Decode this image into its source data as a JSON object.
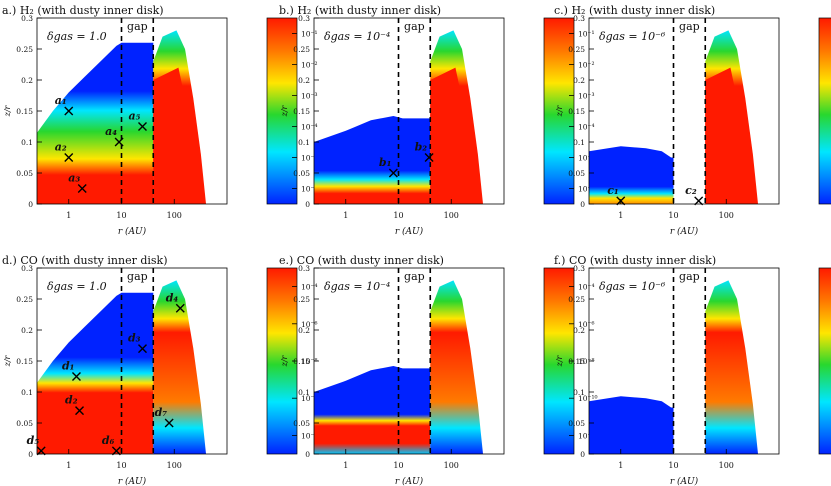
{
  "colors": {
    "red": "#ff1a00",
    "orange": "#ff8c00",
    "yellow": "#ffee00",
    "green": "#28d72e",
    "cyan": "#00e6ff",
    "blue": "#0022ff"
  },
  "chart_data": [
    {
      "type": "heatmap",
      "title": "a.) H₂ (with dusty inner disk)",
      "xlabel": "r (AU)",
      "ylabel": "z/r",
      "xscale": "log",
      "xlim": [
        0.25,
        1000
      ],
      "ylim": [
        0,
        0.3
      ],
      "xticks": [
        "1",
        "10",
        "100"
      ],
      "yticks": [
        "0",
        "0.05",
        "0.1",
        "0.15",
        "0.2",
        "0.25",
        "0.3"
      ],
      "delta": "δgas = 1.0",
      "gap_label": "gap",
      "gap_edges": [
        10,
        40
      ],
      "colorbar": [
        "10⁻¹",
        "10⁻²",
        "10⁻³",
        "10⁻⁴",
        "10⁻⁵",
        "10⁻⁶"
      ],
      "markers": [
        {
          "label": "a₁",
          "r": 1.0,
          "z": 0.15
        },
        {
          "label": "a₂",
          "r": 1.0,
          "z": 0.075
        },
        {
          "label": "a₃",
          "r": 1.8,
          "z": 0.025
        },
        {
          "label": "a₄",
          "r": 9.0,
          "z": 0.1
        },
        {
          "label": "a₅",
          "r": 25,
          "z": 0.125
        }
      ]
    },
    {
      "type": "heatmap",
      "title": "b.) H₂ (with dusty inner disk)",
      "xlabel": "r (AU)",
      "ylabel": "z/r",
      "xscale": "log",
      "xlim": [
        0.25,
        1000
      ],
      "ylim": [
        0,
        0.3
      ],
      "xticks": [
        "1",
        "10",
        "100"
      ],
      "yticks": [
        "0",
        "0.05",
        "0.1",
        "0.15",
        "0.2",
        "0.25",
        "0.3"
      ],
      "delta": "δgas = 10⁻⁴",
      "gap_label": "gap",
      "gap_edges": [
        10,
        40
      ],
      "colorbar": [
        "10⁻¹",
        "10⁻²",
        "10⁻³",
        "10⁻⁴",
        "10⁻⁵",
        "10⁻⁶"
      ],
      "markers": [
        {
          "label": "b₁",
          "r": 8.0,
          "z": 0.05
        },
        {
          "label": "b₂",
          "r": 38,
          "z": 0.075
        }
      ]
    },
    {
      "type": "heatmap",
      "title": "c.) H₂ (with dusty inner disk)",
      "xlabel": "r (AU)",
      "ylabel": "z/r",
      "xscale": "log",
      "xlim": [
        0.25,
        1000
      ],
      "ylim": [
        0,
        0.3
      ],
      "xticks": [
        "1",
        "10",
        "100"
      ],
      "yticks": [
        "0",
        "0.05",
        "0.1",
        "0.15",
        "0.2",
        "0.25",
        "0.3"
      ],
      "delta": "δgas = 10⁻⁶",
      "gap_label": "gap",
      "gap_edges": [
        10,
        40
      ],
      "colorbar": [
        "10⁻¹",
        "10⁻²",
        "10⁻³",
        "10⁻⁴",
        "10⁻⁵",
        "10⁻⁶"
      ],
      "markers": [
        {
          "label": "c₁",
          "r": 1.0,
          "z": 0.005
        },
        {
          "label": "c₂",
          "r": 30,
          "z": 0.005
        }
      ]
    },
    {
      "type": "heatmap",
      "title": "d.) CO (with dusty inner disk)",
      "xlabel": "r (AU)",
      "ylabel": "z/r",
      "xscale": "log",
      "xlim": [
        0.25,
        1000
      ],
      "ylim": [
        0,
        0.3
      ],
      "xticks": [
        "1",
        "10",
        "100"
      ],
      "yticks": [
        "0",
        "0.05",
        "0.1",
        "0.15",
        "0.2",
        "0.25",
        "0.3"
      ],
      "delta": "δgas = 1.0",
      "gap_label": "gap",
      "gap_edges": [
        10,
        40
      ],
      "colorbar": [
        "10⁻⁴",
        "10⁻⁶",
        "10⁻⁸",
        "10⁻¹⁰",
        "10⁻¹²"
      ],
      "markers": [
        {
          "label": "d₁",
          "r": 1.4,
          "z": 0.125
        },
        {
          "label": "d₂",
          "r": 1.6,
          "z": 0.07
        },
        {
          "label": "d₃",
          "r": 25,
          "z": 0.17
        },
        {
          "label": "d₄",
          "r": 130,
          "z": 0.235
        },
        {
          "label": "d₅",
          "r": 0.3,
          "z": 0.005
        },
        {
          "label": "d₆",
          "r": 8.0,
          "z": 0.005
        },
        {
          "label": "d₇",
          "r": 80,
          "z": 0.05
        }
      ]
    },
    {
      "type": "heatmap",
      "title": "e.) CO (with dusty inner disk)",
      "xlabel": "r (AU)",
      "ylabel": "z/r",
      "xscale": "log",
      "xlim": [
        0.25,
        1000
      ],
      "ylim": [
        0,
        0.3
      ],
      "xticks": [
        "1",
        "10",
        "100"
      ],
      "yticks": [
        "0",
        "0.05",
        "0.1",
        "0.15",
        "0.2",
        "0.25",
        "0.3"
      ],
      "delta": "δgas = 10⁻⁴",
      "gap_label": "gap",
      "gap_edges": [
        10,
        40
      ],
      "colorbar": [
        "10⁻⁴",
        "10⁻⁶",
        "10⁻⁸",
        "10⁻¹⁰",
        "10⁻¹²"
      ],
      "markers": []
    },
    {
      "type": "heatmap",
      "title": "f.) CO (with dusty inner disk)",
      "xlabel": "r (AU)",
      "ylabel": "z/r",
      "xscale": "log",
      "xlim": [
        0.25,
        1000
      ],
      "ylim": [
        0,
        0.3
      ],
      "xticks": [
        "1",
        "10",
        "100"
      ],
      "yticks": [
        "0",
        "0.05",
        "0.1",
        "0.15",
        "0.2",
        "0.25",
        "0.3"
      ],
      "delta": "δgas = 10⁻⁶",
      "gap_label": "gap",
      "gap_edges": [
        10,
        40
      ],
      "colorbar": [
        "10⁻⁴",
        "10⁻⁶",
        "10⁻⁸",
        "10⁻¹⁰",
        "10⁻¹²"
      ],
      "markers": []
    }
  ]
}
